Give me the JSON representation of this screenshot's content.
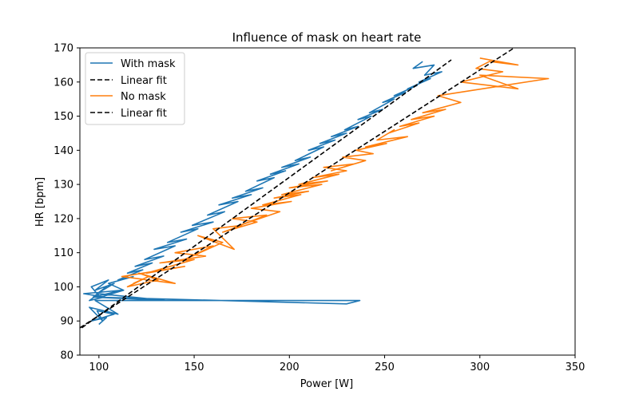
{
  "chart_data": {
    "type": "line",
    "title": "Influence of mask on heart rate",
    "xlabel": "Power [W]",
    "ylabel": "HR [bpm]",
    "xlim": [
      90,
      350
    ],
    "ylim": [
      80,
      170
    ],
    "xticks": [
      100,
      150,
      200,
      250,
      300,
      350
    ],
    "yticks": [
      80,
      90,
      100,
      110,
      120,
      130,
      140,
      150,
      160,
      170
    ],
    "grid": false,
    "legend_position": "top-left",
    "series": [
      {
        "name": "With mask",
        "kind": "data",
        "color": "#1f77b4",
        "x": [
          100,
          104,
          96,
          108,
          99,
          102,
          95,
          110,
          101,
          98,
          237,
          230,
          97,
          135,
          100,
          95,
          103,
          92,
          112,
          97,
          104,
          99,
          108,
          98,
          105,
          96,
          99,
          101,
          113,
          105,
          118,
          110,
          123,
          115,
          128,
          119,
          134,
          124,
          140,
          129,
          146,
          136,
          152,
          143,
          160,
          149,
          166,
          157,
          173,
          163,
          180,
          170,
          186,
          177,
          192,
          183,
          198,
          190,
          205,
          196,
          211,
          203,
          218,
          210,
          224,
          216,
          230,
          222,
          236,
          229,
          243,
          236,
          249,
          242,
          255,
          249,
          261,
          255,
          267,
          262,
          274,
          268,
          280,
          271,
          276,
          265,
          270
        ],
        "y": [
          89,
          91,
          90,
          92,
          93,
          90,
          94,
          92,
          95,
          96,
          96,
          95,
          97,
          96,
          98,
          96,
          97,
          98,
          99,
          97,
          100,
          98,
          101,
          99,
          102,
          100,
          98,
          97,
          99,
          101,
          103,
          102,
          105,
          104,
          107,
          106,
          109,
          108,
          112,
          111,
          114,
          113,
          117,
          116,
          119,
          118,
          122,
          121,
          125,
          124,
          127,
          126,
          129,
          128,
          132,
          131,
          134,
          133,
          136,
          135,
          138,
          137,
          141,
          140,
          143,
          142,
          145,
          144,
          147,
          146,
          150,
          149,
          152,
          151,
          155,
          154,
          157,
          156,
          159,
          158,
          161,
          160,
          163,
          162,
          165,
          164,
          166
        ]
      },
      {
        "name": "Linear fit",
        "kind": "fit",
        "color": "#000000",
        "x": [
          91,
          285
        ],
        "y": [
          88,
          166.5
        ]
      },
      {
        "name": "No mask",
        "kind": "data",
        "color": "#ff7f0e",
        "x": [
          118,
          126,
          115,
          131,
          121,
          140,
          112,
          145,
          125,
          150,
          132,
          156,
          140,
          160,
          145,
          165,
          152,
          171,
          160,
          175,
          165,
          183,
          170,
          188,
          174,
          195,
          180,
          201,
          186,
          206,
          192,
          210,
          196,
          217,
          200,
          220,
          205,
          226,
          212,
          230,
          218,
          234,
          222,
          240,
          228,
          244,
          235,
          251,
          240,
          262,
          246,
          255,
          252,
          268,
          258,
          276,
          264,
          282,
          270,
          290,
          278,
          336,
          300,
          320,
          290,
          312,
          298,
          305,
          320,
          300
        ],
        "y": [
          101,
          103,
          100,
          102,
          104,
          101,
          103,
          106,
          104,
          108,
          107,
          109,
          110,
          112,
          108,
          113,
          115,
          111,
          117,
          118,
          116,
          119,
          120,
          121,
          118,
          122,
          123,
          125,
          124,
          127,
          126,
          128,
          127,
          130,
          129,
          131,
          130,
          133,
          132,
          134,
          135,
          136,
          134,
          137,
          138,
          139,
          140,
          142,
          141,
          144,
          143,
          146,
          145,
          148,
          147,
          150,
          149,
          152,
          151,
          154,
          156,
          161,
          162,
          158,
          160,
          163,
          164,
          166,
          165,
          167
        ]
      },
      {
        "name": "Linear fit",
        "kind": "fit",
        "color": "#000000",
        "x": [
          90,
          318
        ],
        "y": [
          88,
          170
        ]
      }
    ]
  }
}
